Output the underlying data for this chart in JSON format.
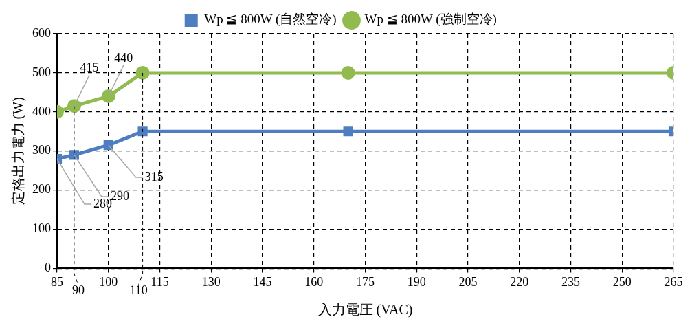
{
  "chart_data": {
    "type": "line",
    "xlabel": "入力電圧 (VAC)",
    "ylabel": "定格出力電力 (W)",
    "xlim": [
      85,
      265
    ],
    "xticks": [
      85,
      100,
      115,
      130,
      145,
      160,
      175,
      190,
      205,
      220,
      235,
      250,
      265
    ],
    "ylim": [
      0,
      600
    ],
    "yticks": [
      0,
      100,
      200,
      300,
      400,
      500,
      600
    ],
    "grid": true,
    "legend": "top",
    "series": [
      {
        "name": "Wp ≦ 800W (自然空冷)",
        "color": "#4f7ec0",
        "marker": "square",
        "x": [
          85,
          90,
          100,
          110,
          170,
          265
        ],
        "values": [
          280,
          290,
          315,
          350,
          350,
          350
        ]
      },
      {
        "name": "Wp ≦ 800W (強制空冷)",
        "color": "#92bb4f",
        "marker": "circle",
        "x": [
          85,
          90,
          100,
          110,
          170,
          265
        ],
        "values": [
          400,
          415,
          440,
          500,
          500,
          500
        ]
      }
    ],
    "ref_lines": [
      {
        "axis": "x",
        "value": 90,
        "label": "90",
        "line_style": "dashed"
      },
      {
        "axis": "x",
        "value": 110,
        "label": "110",
        "line_style": "dashed"
      }
    ],
    "annotations": [
      {
        "text": "415",
        "x": 90,
        "y": 415
      },
      {
        "text": "440",
        "x": 100,
        "y": 440
      },
      {
        "text": "280",
        "x": 85,
        "y": 280
      },
      {
        "text": "290",
        "x": 90,
        "y": 290
      },
      {
        "text": "315",
        "x": 100,
        "y": 315
      }
    ]
  }
}
